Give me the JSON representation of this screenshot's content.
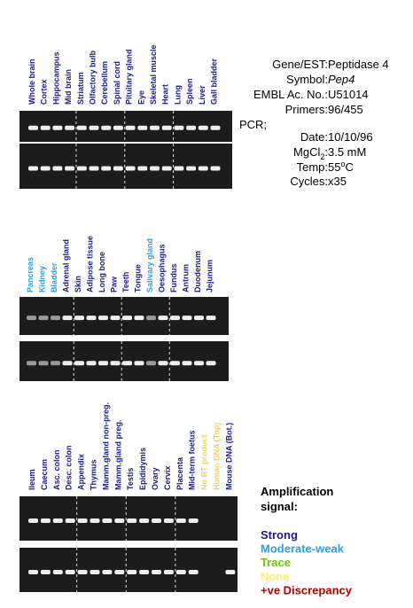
{
  "panels": [
    {
      "lanes": [
        {
          "label": "Whole brain",
          "color": "#1a1a8c"
        },
        {
          "label": "Cortex",
          "color": "#1a1a8c"
        },
        {
          "label": "Hippocampus",
          "color": "#1a1a8c"
        },
        {
          "label": "Mid brain",
          "color": "#1a1a8c"
        },
        {
          "label": "Striatum",
          "color": "#1a1a8c"
        },
        {
          "label": "Olfactory bulb",
          "color": "#1a1a8c"
        },
        {
          "label": "Cerebellum",
          "color": "#1a1a8c"
        },
        {
          "label": "Spinal cord",
          "color": "#1a1a8c"
        },
        {
          "label": "Pituitary gland",
          "color": "#1a1a8c"
        },
        {
          "label": "Eye",
          "color": "#1a1a8c"
        },
        {
          "label": "Skeletal muscle",
          "color": "#1a1a8c"
        },
        {
          "label": "Heart",
          "color": "#1a1a8c"
        },
        {
          "label": "Lung",
          "color": "#1a1a8c"
        },
        {
          "label": "Spleen",
          "color": "#1a1a8c"
        },
        {
          "label": "Liver",
          "color": "#1a1a8c"
        },
        {
          "label": "Gall bladder",
          "color": "#1a1a8c"
        }
      ]
    },
    {
      "lanes": [
        {
          "label": "Pancreas",
          "color": "#2aa0e0"
        },
        {
          "label": "Kidney",
          "color": "#2aa0e0"
        },
        {
          "label": "Bladder",
          "color": "#2aa0e0"
        },
        {
          "label": "Adrenal gland",
          "color": "#1a1a8c"
        },
        {
          "label": "Skin",
          "color": "#1a1a8c"
        },
        {
          "label": "Adipose tissue",
          "color": "#1a1a8c"
        },
        {
          "label": "Long bone",
          "color": "#1a1a8c"
        },
        {
          "label": "Paw",
          "color": "#1a1a8c"
        },
        {
          "label": "Teeth",
          "color": "#1a1a8c"
        },
        {
          "label": "Tongue",
          "color": "#1a1a8c"
        },
        {
          "label": "Salivary gland",
          "color": "#2aa0e0"
        },
        {
          "label": "Oesophagus",
          "color": "#1a1a8c"
        },
        {
          "label": "Fundus",
          "color": "#1a1a8c"
        },
        {
          "label": "Antrum",
          "color": "#1a1a8c"
        },
        {
          "label": "Duodenum",
          "color": "#1a1a8c"
        },
        {
          "label": "Jejunum",
          "color": "#1a1a8c"
        }
      ]
    },
    {
      "lanes": [
        {
          "label": "Ileum",
          "color": "#1a1a8c"
        },
        {
          "label": "Caecum",
          "color": "#1a1a8c"
        },
        {
          "label": "Asc. colon",
          "color": "#1a1a8c"
        },
        {
          "label": "Desc. colon",
          "color": "#1a1a8c"
        },
        {
          "label": "Appendix",
          "color": "#1a1a8c"
        },
        {
          "label": "Thymus",
          "color": "#1a1a8c"
        },
        {
          "label": "Mamm.gland non-preg.",
          "color": "#1a1a8c"
        },
        {
          "label": "Mamm.gland preg.",
          "color": "#1a1a8c"
        },
        {
          "label": "Testis",
          "color": "#1a1a8c"
        },
        {
          "label": "Epididymis",
          "color": "#1a1a8c"
        },
        {
          "label": "Ovary",
          "color": "#1a1a8c"
        },
        {
          "label": "Cervix",
          "color": "#1a1a8c"
        },
        {
          "label": "Placenta",
          "color": "#1a1a8c"
        },
        {
          "label": "Mid-term foetus",
          "color": "#1a1a8c"
        },
        {
          "label": "No RT product",
          "color": "#f0d060"
        },
        {
          "label": "Human DNA (Top)",
          "color": "#f0d060"
        },
        {
          "label": "Mouse DNA (Bot.)",
          "color": "#1a1a8c"
        }
      ]
    }
  ],
  "info": {
    "gene_label": "Gene/EST:",
    "gene": "Peptidase 4",
    "symbol_label": "Symbol:",
    "symbol": "Pep4",
    "embl_label": "EMBL Ac. No.:",
    "embl": "U51014",
    "primers_label": "Primers:",
    "primers": "96/455",
    "pcr": "PCR;",
    "date_label": "Date:",
    "date": "10/10/96",
    "mgcl_label": "MgCl",
    "mgcl_sub": "2",
    "mgcl_colon": ":",
    "mgcl": "3.5 mM",
    "temp_label": "Temp:",
    "temp": "55",
    "temp_sup": "o",
    "temp_unit": "C",
    "cycles_label": "Cycles:",
    "cycles": "x35"
  },
  "legend": {
    "title_1": "Amplification",
    "title_2": "signal:",
    "items": [
      {
        "label": "Strong",
        "color": "#1a1a8c"
      },
      {
        "label": "Moderate-weak",
        "color": "#2aa0e0"
      },
      {
        "label": "Trace",
        "color": "#66cc00"
      },
      {
        "label": "None",
        "color": "#ffee66"
      },
      {
        "label": "+ve Discrepancy",
        "color": "#b00000"
      }
    ]
  }
}
